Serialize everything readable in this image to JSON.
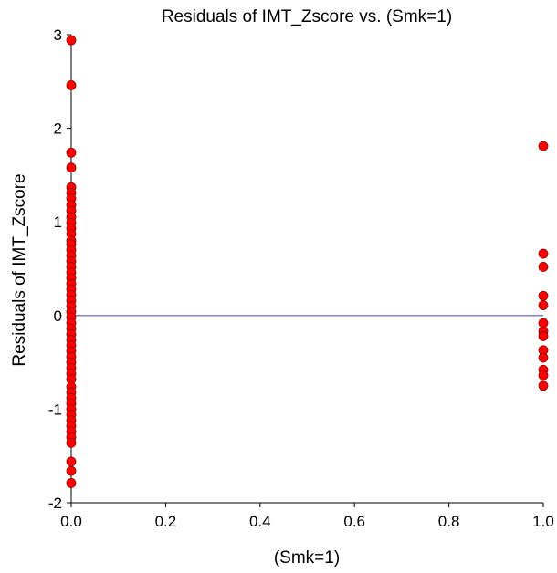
{
  "chart_data": {
    "type": "scatter",
    "title": "Residuals of IMT_Zscore vs. (Smk=1)",
    "xlabel": "(Smk=1)",
    "ylabel": "Residuals of IMT_Zscore",
    "xlim": [
      0,
      1
    ],
    "ylim": [
      -2,
      3
    ],
    "x_ticks": [
      "0.0",
      "0.2",
      "0.4",
      "0.6",
      "0.8",
      "1.0"
    ],
    "y_ticks": [
      "-2",
      "-1",
      "0",
      "1",
      "2",
      "3"
    ],
    "reference_line": {
      "y": 0,
      "color": "#5b5bb3"
    },
    "point_color": "#ff0000",
    "point_edge_color": "#8b0000",
    "grid": false,
    "legend": "none",
    "points": [
      {
        "x": 0,
        "y": 2.94
      },
      {
        "x": 0,
        "y": 2.46
      },
      {
        "x": 0,
        "y": 1.74
      },
      {
        "x": 0,
        "y": 1.58
      },
      {
        "x": 0,
        "y": 1.37
      },
      {
        "x": 0,
        "y": 1.31
      },
      {
        "x": 0,
        "y": 1.25
      },
      {
        "x": 0,
        "y": 1.18
      },
      {
        "x": 0,
        "y": 1.12
      },
      {
        "x": 0,
        "y": 1.05
      },
      {
        "x": 0,
        "y": 0.99
      },
      {
        "x": 0,
        "y": 0.93
      },
      {
        "x": 0,
        "y": 0.87
      },
      {
        "x": 0,
        "y": 0.8
      },
      {
        "x": 0,
        "y": 0.76
      },
      {
        "x": 0,
        "y": 0.7
      },
      {
        "x": 0,
        "y": 0.64
      },
      {
        "x": 0,
        "y": 0.58
      },
      {
        "x": 0,
        "y": 0.52
      },
      {
        "x": 0,
        "y": 0.46
      },
      {
        "x": 0,
        "y": 0.4
      },
      {
        "x": 0,
        "y": 0.34
      },
      {
        "x": 0,
        "y": 0.28
      },
      {
        "x": 0,
        "y": 0.22
      },
      {
        "x": 0,
        "y": 0.16
      },
      {
        "x": 0,
        "y": 0.1
      },
      {
        "x": 0,
        "y": 0.04
      },
      {
        "x": 0,
        "y": -0.02
      },
      {
        "x": 0,
        "y": -0.08
      },
      {
        "x": 0,
        "y": -0.14
      },
      {
        "x": 0,
        "y": -0.2
      },
      {
        "x": 0,
        "y": -0.26
      },
      {
        "x": 0,
        "y": -0.32
      },
      {
        "x": 0,
        "y": -0.38
      },
      {
        "x": 0,
        "y": -0.44
      },
      {
        "x": 0,
        "y": -0.5
      },
      {
        "x": 0,
        "y": -0.56
      },
      {
        "x": 0,
        "y": -0.62
      },
      {
        "x": 0,
        "y": -0.68
      },
      {
        "x": 0,
        "y": -0.76
      },
      {
        "x": 0,
        "y": -0.82
      },
      {
        "x": 0,
        "y": -0.88
      },
      {
        "x": 0,
        "y": -0.94
      },
      {
        "x": 0,
        "y": -1.0
      },
      {
        "x": 0,
        "y": -1.06
      },
      {
        "x": 0,
        "y": -1.12
      },
      {
        "x": 0,
        "y": -1.18
      },
      {
        "x": 0,
        "y": -1.24
      },
      {
        "x": 0,
        "y": -1.3
      },
      {
        "x": 0,
        "y": -1.36
      },
      {
        "x": 0,
        "y": -1.56
      },
      {
        "x": 0,
        "y": -1.66
      },
      {
        "x": 0,
        "y": -1.79
      },
      {
        "x": 1,
        "y": 1.81
      },
      {
        "x": 1,
        "y": 0.66
      },
      {
        "x": 1,
        "y": 0.52
      },
      {
        "x": 1,
        "y": 0.21
      },
      {
        "x": 1,
        "y": 0.11
      },
      {
        "x": 1,
        "y": -0.08
      },
      {
        "x": 1,
        "y": -0.17
      },
      {
        "x": 1,
        "y": -0.22
      },
      {
        "x": 1,
        "y": -0.37
      },
      {
        "x": 1,
        "y": -0.45
      },
      {
        "x": 1,
        "y": -0.58
      },
      {
        "x": 1,
        "y": -0.64
      },
      {
        "x": 1,
        "y": -0.75
      }
    ]
  }
}
